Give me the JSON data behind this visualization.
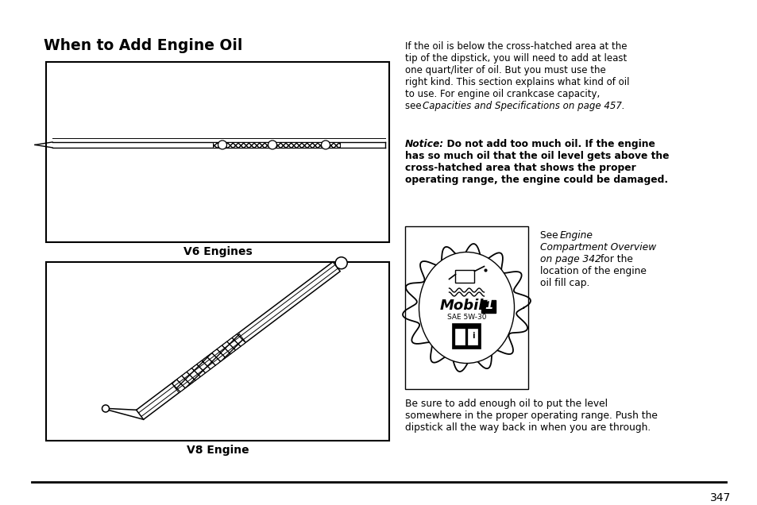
{
  "title": "When to Add Engine Oil",
  "bg_color": "#ffffff",
  "text_color": "#000000",
  "page_number": "347",
  "right_para1_line1": "If the oil is below the cross-hatched area at the",
  "right_para1_line2": "tip of the dipstick, you will need to add at least",
  "right_para1_line3": "one quart/liter of oil. But you must use the",
  "right_para1_line4": "right kind. This section explains what kind of oil",
  "right_para1_line5": "to use. For engine oil crankcase capacity,",
  "right_para1_line6_normal": "see ",
  "right_para1_line6_italic": "Capacities and Specifications on page 457.",
  "notice_prefix": "Notice:",
  "notice_rest": "  Do not add too much oil. If the engine",
  "notice_line2": "has so much oil that the oil level gets above the",
  "notice_line3": "cross-hatched area that shows the proper",
  "notice_line4": "operating range, the engine could be damaged.",
  "see_text_normal1": "See ",
  "see_text_italic1": "Engine",
  "see_text_italic2": "Compartment Overview",
  "see_text_italic3": "on page 342",
  "see_text_normal2": " for the",
  "see_text_normal3": "location of the engine",
  "see_text_normal4": "oil fill cap.",
  "bottom_line1": "Be sure to add enough oil to put the level",
  "bottom_line2": "somewhere in the proper operating range. Push the",
  "bottom_line3": "dipstick all the way back in when you are through.",
  "label_v6": "V6 Engines",
  "label_v8": "V8 Engine",
  "fig_width": 9.54,
  "fig_height": 6.36,
  "dpi": 100
}
